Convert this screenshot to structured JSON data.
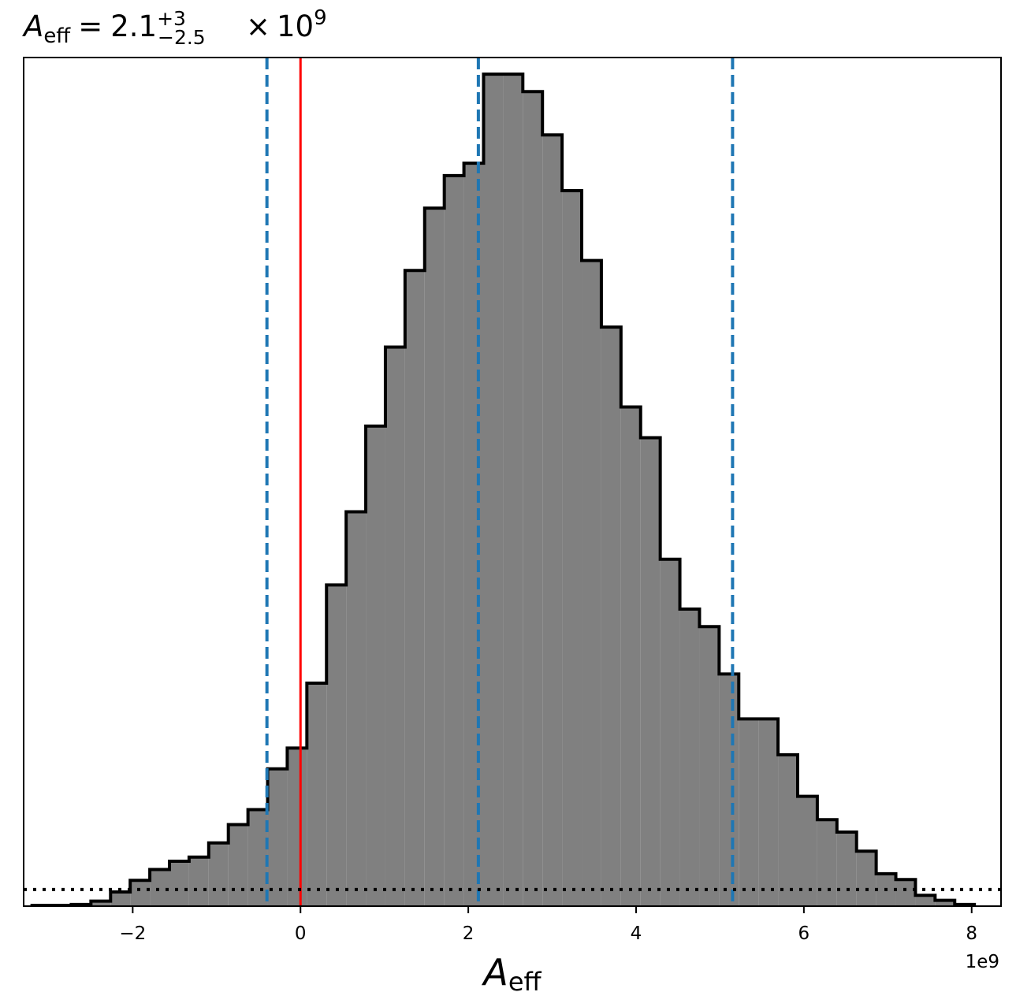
{
  "chart_data": {
    "type": "bar",
    "subtype": "step-histogram",
    "title": {
      "variable": "A",
      "variable_subscript": "eff",
      "equals": "=",
      "median": "2.1",
      "upper_error": "+3",
      "lower_error": "−2.5",
      "times": "×",
      "scale_base": "10",
      "scale_exponent": "9"
    },
    "xlabel": {
      "variable": "A",
      "variable_subscript": "eff"
    },
    "x_offset_label": "1e9",
    "x_ticks": [
      -2,
      0,
      2,
      4,
      6,
      8
    ],
    "x_tick_labels": [
      "−2",
      "0",
      "2",
      "4",
      "6",
      "8"
    ],
    "xlim": [
      -3.3,
      8.35
    ],
    "ylim": [
      0,
      102
    ],
    "bin_edges": [
      -3.2,
      -2.966,
      -2.732,
      -2.498,
      -2.264,
      -2.03,
      -1.796,
      -1.562,
      -1.328,
      -1.094,
      -0.86,
      -0.626,
      -0.392,
      -0.158,
      0.076,
      0.31,
      0.544,
      0.778,
      1.012,
      1.246,
      1.48,
      1.714,
      1.948,
      2.182,
      2.416,
      2.65,
      2.884,
      3.118,
      3.352,
      3.586,
      3.82,
      4.054,
      4.288,
      4.522,
      4.756,
      4.99,
      5.224,
      5.458,
      5.692,
      5.926,
      6.16,
      6.394,
      6.628,
      6.862,
      7.096,
      7.33,
      7.564,
      7.798,
      8.032
    ],
    "counts": [
      0.1,
      0.1,
      0.2,
      0.6,
      1.7,
      3.1,
      4.4,
      5.4,
      5.9,
      7.6,
      9.8,
      11.6,
      16.5,
      19.0,
      26.8,
      38.6,
      47.4,
      57.7,
      67.2,
      76.4,
      83.9,
      87.8,
      89.3,
      100.0,
      100.0,
      97.9,
      92.7,
      86.0,
      77.6,
      69.6,
      60.0,
      56.3,
      41.7,
      35.7,
      33.6,
      27.9,
      22.5,
      22.5,
      18.2,
      13.2,
      10.4,
      8.9,
      6.6,
      3.9,
      3.2,
      1.3,
      0.7,
      0.2
    ],
    "fill_color": "#808080",
    "edge_color": "#000000",
    "vlines": [
      {
        "x": -0.4,
        "style": "dashed",
        "color": "#1f77b4"
      },
      {
        "x": 2.12,
        "style": "dashed",
        "color": "#1f77b4"
      },
      {
        "x": 5.15,
        "style": "dashed",
        "color": "#1f77b4"
      },
      {
        "x": 0,
        "style": "solid",
        "color": "#ff0000"
      }
    ],
    "hline": {
      "y": 2.0,
      "style": "dotted",
      "color": "#000000"
    },
    "grid": false,
    "legend": "none"
  }
}
